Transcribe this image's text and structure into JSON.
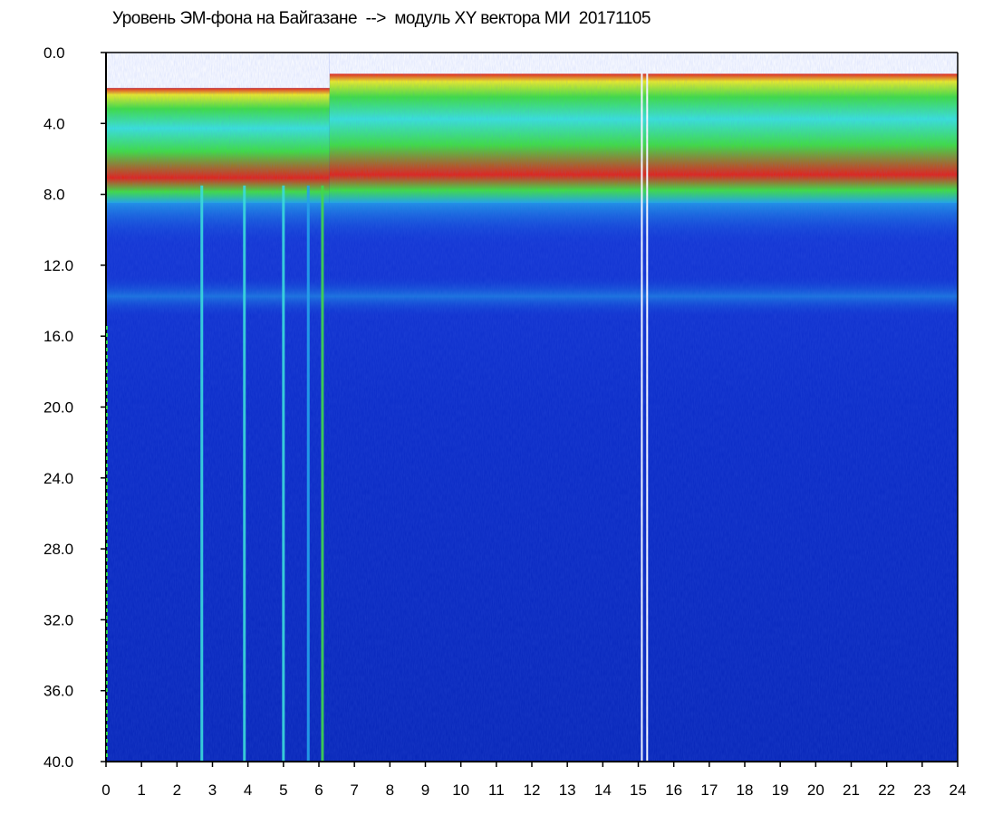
{
  "chart_data": {
    "type": "heatmap",
    "title": "Уровень ЭМ-фона на Байгазане  -->  модуль XY вектора МИ  20171105",
    "xlabel": "",
    "ylabel": "",
    "xlim": [
      0,
      24
    ],
    "ylim": [
      0.0,
      40.0
    ],
    "y_inverted": true,
    "x_ticks": [
      "0",
      "1",
      "2",
      "3",
      "4",
      "5",
      "6",
      "7",
      "8",
      "9",
      "10",
      "11",
      "12",
      "13",
      "14",
      "15",
      "16",
      "17",
      "18",
      "19",
      "20",
      "21",
      "22",
      "23",
      "24"
    ],
    "y_ticks": [
      "0.0",
      "4.0",
      "8.0",
      "12.0",
      "16.0",
      "20.0",
      "24.0",
      "28.0",
      "32.0",
      "36.0",
      "40.0"
    ],
    "colors": {
      "background_low": "#0a2bd2",
      "mid": "#1fa8e8",
      "cyan": "#38e6d8",
      "green": "#3fe23a",
      "yellow": "#f0f020",
      "high": "#e82010",
      "axis": "#000000"
    },
    "bands": [
      {
        "name": "upper-edge",
        "x_start": 0,
        "x_end": 6.3,
        "y_top": 2.0,
        "y_bottom": 8.5,
        "level": "high"
      },
      {
        "name": "upper-edge",
        "x_start": 6.3,
        "x_end": 24,
        "y_top": 1.2,
        "y_bottom": 8.5,
        "level": "high"
      },
      {
        "name": "mid-band",
        "x_start": 0,
        "x_end": 24,
        "y_top": 12.5,
        "y_bottom": 15.0,
        "level": "mid"
      }
    ],
    "vertical_streaks": [
      {
        "x": 2.7,
        "level": "cyan"
      },
      {
        "x": 3.9,
        "level": "cyan"
      },
      {
        "x": 5.0,
        "level": "cyan"
      },
      {
        "x": 5.7,
        "level": "mid"
      },
      {
        "x": 6.1,
        "level": "green"
      },
      {
        "x": 15.1,
        "level": "gap"
      },
      {
        "x": 15.25,
        "level": "gap"
      }
    ]
  }
}
